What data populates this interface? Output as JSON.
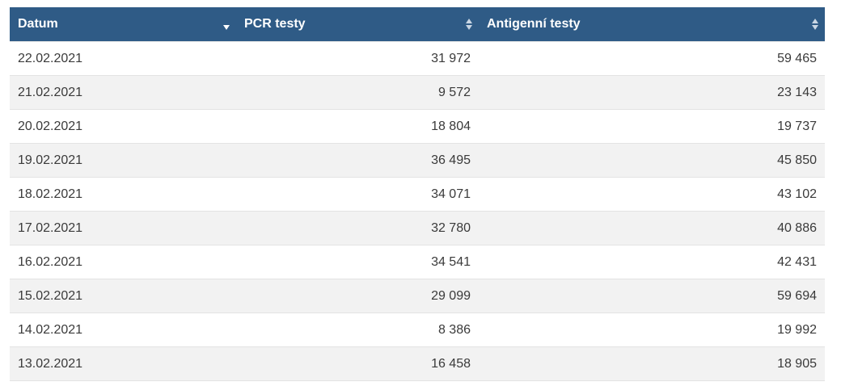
{
  "table": {
    "columns": [
      {
        "label": "Datum",
        "sort": "descending"
      },
      {
        "label": "PCR testy",
        "sort": "none"
      },
      {
        "label": "Antigenní testy",
        "sort": "none"
      }
    ],
    "rows": [
      {
        "date": "22.02.2021",
        "pcr": "31 972",
        "antigen": "59 465"
      },
      {
        "date": "21.02.2021",
        "pcr": "9 572",
        "antigen": "23 143"
      },
      {
        "date": "20.02.2021",
        "pcr": "18 804",
        "antigen": "19 737"
      },
      {
        "date": "19.02.2021",
        "pcr": "36 495",
        "antigen": "45 850"
      },
      {
        "date": "18.02.2021",
        "pcr": "34 071",
        "antigen": "43 102"
      },
      {
        "date": "17.02.2021",
        "pcr": "32 780",
        "antigen": "40 886"
      },
      {
        "date": "16.02.2021",
        "pcr": "34 541",
        "antigen": "42 431"
      },
      {
        "date": "15.02.2021",
        "pcr": "29 099",
        "antigen": "59 694"
      },
      {
        "date": "14.02.2021",
        "pcr": "8 386",
        "antigen": "19 992"
      },
      {
        "date": "13.02.2021",
        "pcr": "16 458",
        "antigen": "18 905"
      }
    ]
  },
  "colors": {
    "header_bg": "#2f5b86",
    "header_text": "#ffffff",
    "row_alt_bg": "#f2f2f2"
  }
}
